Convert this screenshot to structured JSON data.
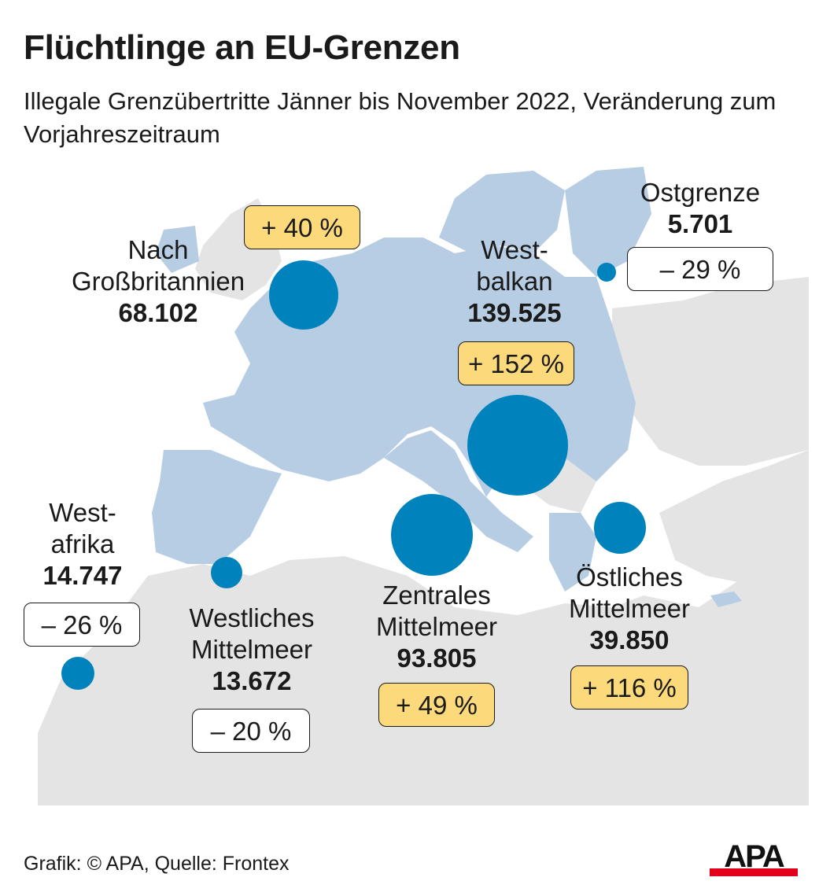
{
  "title": "Flüchtlinge an EU-Grenzen",
  "subtitle": "Illegale Grenzübertritte Jänner bis November 2022, Veränderung zum Vorjahreszeitraum",
  "colors": {
    "dot": "#0083bd",
    "eu_land": "#b7cde3",
    "other_land": "#e4e4e4",
    "increase_badge": "#fcd97a",
    "decrease_badge": "#ffffff"
  },
  "routes": [
    {
      "id": "grossbritannien",
      "name": "Nach\nGroßbritannien",
      "value": "68.102",
      "change": "+ 40 %",
      "direction": "increase"
    },
    {
      "id": "westbalkan",
      "name": "West-\nbalkan",
      "value": "139.525",
      "change": "+ 152 %",
      "direction": "increase"
    },
    {
      "id": "ostgrenze",
      "name": "Ostgrenze",
      "value": "5.701",
      "change": "– 29 %",
      "direction": "decrease"
    },
    {
      "id": "westafrika",
      "name": "West-\nafrika",
      "value": "14.747",
      "change": "– 26 %",
      "direction": "decrease"
    },
    {
      "id": "westliches-mittelmeer",
      "name": "Westliches\nMittelmeer",
      "value": "13.672",
      "change": "– 20 %",
      "direction": "decrease"
    },
    {
      "id": "zentrales-mittelmeer",
      "name": "Zentrales\nMittelmeer",
      "value": "93.805",
      "change": "+ 49 %",
      "direction": "increase"
    },
    {
      "id": "oestliches-mittelmeer",
      "name": "Östliches\nMittelmeer",
      "value": "39.850",
      "change": "+ 116 %",
      "direction": "increase"
    }
  ],
  "footer": "Grafik: © APA, Quelle: Frontex",
  "logo_text": "APA"
}
